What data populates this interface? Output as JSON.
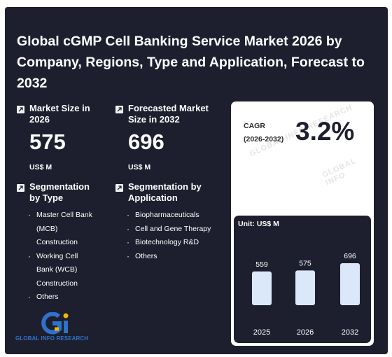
{
  "title": "Global cGMP Cell Banking Service Market 2026 by Company, Regions, Type and Application, Forecast to 2032",
  "market_size": {
    "label": "Market Size in 2026",
    "value": "575",
    "unit": "US$ M"
  },
  "forecast_size": {
    "label": "Forecasted Market Size in 2032",
    "value": "696",
    "unit": "US$ M"
  },
  "segmentation_type": {
    "label": "Segmentation by Type",
    "items": [
      "Master Cell Bank (MCB) Construction",
      "Working Cell Bank (WCB) Construction",
      "Others"
    ]
  },
  "segmentation_application": {
    "label": "Segmentation by Application",
    "items": [
      "Biopharmaceuticals",
      "Cell and Gene Therapy",
      "Biotechnology R&D",
      "Others"
    ]
  },
  "cagr": {
    "label_line1": "CAGR",
    "label_line2": "(2026-2032)",
    "value": "3.2%"
  },
  "watermark": {
    "text_main": "GLOBAL INFO RESEARCH",
    "text_small": "GLOBAL INFO"
  },
  "logo": {
    "text": "GLOBAL INFO RESEARCH"
  },
  "colors": {
    "background": "#1d1f2e",
    "bar": "#dbe8fa",
    "logo_blue": "#2f72c9",
    "logo_yellow": "#f2b800"
  },
  "chart_data": {
    "type": "bar",
    "unit_label": "Unit: US$ M",
    "categories": [
      "2025",
      "2026",
      "2032"
    ],
    "values": [
      559,
      575,
      696
    ],
    "value_labels": [
      "559",
      "575",
      "696"
    ]
  }
}
